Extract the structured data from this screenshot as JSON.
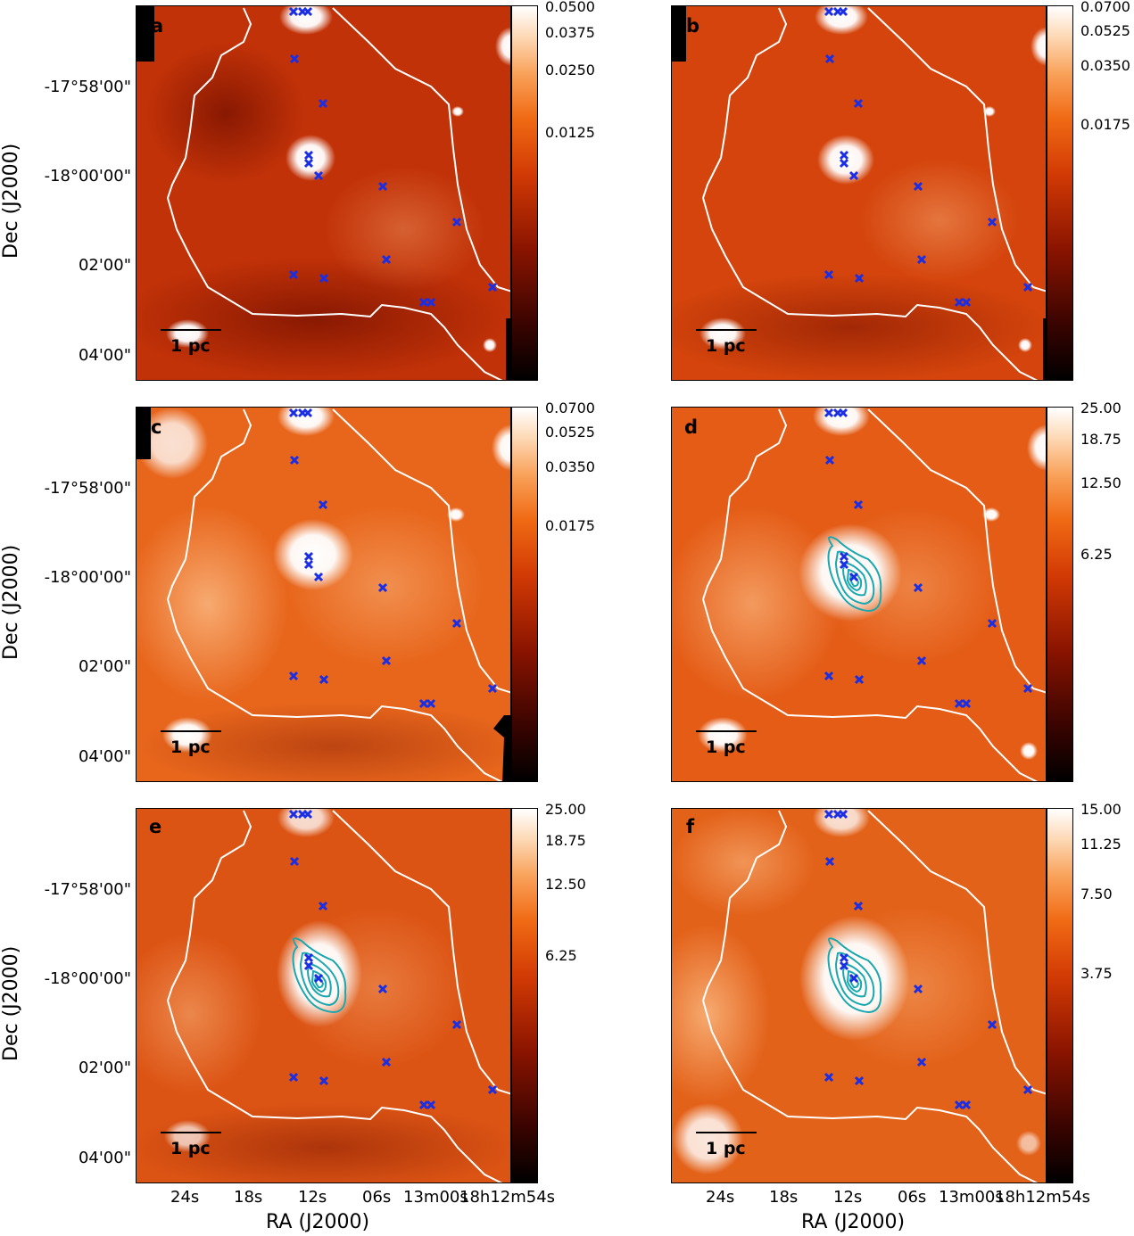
{
  "figure": {
    "axes": {
      "dec_label": "Dec (J2000)",
      "ra_label": "RA (J2000)",
      "dec_ticks": [
        "-17°58'00\"",
        "-18°00'00\"",
        "02'00\"",
        "04'00\""
      ],
      "ra_ticks": [
        "24s",
        "18s",
        "12s",
        "06s",
        "13m00s",
        "18h12m54s"
      ]
    },
    "scale_bar": "1 pc",
    "colors": {
      "marker": "#1a2ee6",
      "contour": "#1aa8b0",
      "boundary": "#ffffff"
    },
    "panels": [
      {
        "label": "a",
        "colorbar_ticks": [
          "0.0500",
          "0.0375",
          "0.0250",
          "0.0125"
        ],
        "contours": false
      },
      {
        "label": "b",
        "colorbar_ticks": [
          "0.0700",
          "0.0525",
          "0.0350",
          "0.0175"
        ],
        "contours": false
      },
      {
        "label": "c",
        "colorbar_ticks": [
          "0.0700",
          "0.0525",
          "0.0350",
          "0.0175"
        ],
        "contours": false
      },
      {
        "label": "d",
        "colorbar_ticks": [
          "25.00",
          "18.75",
          "12.50",
          "6.25"
        ],
        "contours": true
      },
      {
        "label": "e",
        "colorbar_ticks": [
          "25.00",
          "18.75",
          "12.50",
          "6.25"
        ],
        "contours": true
      },
      {
        "label": "f",
        "colorbar_ticks": [
          "15.00",
          "11.25",
          "7.50",
          "3.75"
        ],
        "contours": true
      }
    ]
  }
}
